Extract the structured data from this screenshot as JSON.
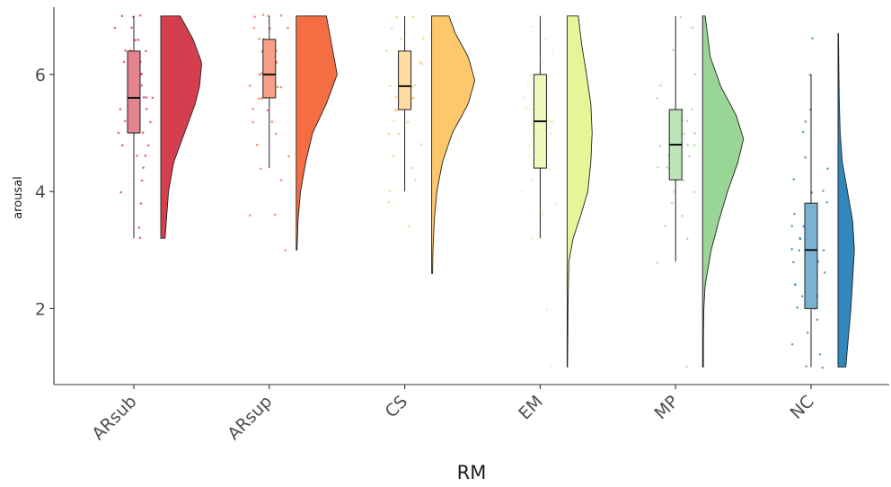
{
  "chart_data": {
    "type": "raincloud",
    "title": "",
    "xlabel": "RM",
    "ylabel": "arousal",
    "ylim": [
      0.7,
      7.15
    ],
    "y_ticks": [
      2,
      4,
      6
    ],
    "grid": false,
    "legend": "none",
    "categories": [
      "ARsub",
      "ARsup",
      "CS",
      "EM",
      "MP",
      "NC"
    ],
    "series": [
      {
        "category": "ARsub",
        "color": "#D53E4F",
        "box": {
          "min": 3.2,
          "q1": 5.0,
          "median": 5.6,
          "q3": 6.4,
          "max": 7.0
        },
        "density_range": [
          3.2,
          7.0
        ],
        "density": [
          [
            3.2,
            0.1
          ],
          [
            3.6,
            0.14
          ],
          [
            4.0,
            0.18
          ],
          [
            4.5,
            0.3
          ],
          [
            5.0,
            0.55
          ],
          [
            5.5,
            0.8
          ],
          [
            5.8,
            0.9
          ],
          [
            6.2,
            0.95
          ],
          [
            6.6,
            0.75
          ],
          [
            7.0,
            0.45
          ]
        ],
        "points": [
          3.2,
          3.4,
          3.8,
          4.0,
          4.2,
          4.4,
          4.6,
          4.6,
          4.8,
          4.8,
          5.0,
          5.0,
          5.2,
          5.2,
          5.2,
          5.4,
          5.4,
          5.4,
          5.6,
          5.6,
          5.6,
          5.6,
          5.8,
          5.8,
          5.8,
          6.0,
          6.0,
          6.0,
          6.0,
          6.2,
          6.2,
          6.2,
          6.4,
          6.4,
          6.4,
          6.6,
          6.6,
          6.8,
          6.8,
          7.0,
          7.0,
          7.0
        ]
      },
      {
        "category": "ARsup",
        "color": "#F46D43",
        "box": {
          "min": 4.4,
          "q1": 5.6,
          "median": 6.0,
          "q3": 6.6,
          "max": 7.0
        },
        "density_range": [
          3.0,
          7.0
        ],
        "density": [
          [
            3.0,
            0.02
          ],
          [
            3.5,
            0.04
          ],
          [
            4.0,
            0.1
          ],
          [
            4.5,
            0.22
          ],
          [
            5.0,
            0.38
          ],
          [
            5.5,
            0.7
          ],
          [
            6.0,
            0.95
          ],
          [
            6.4,
            0.85
          ],
          [
            6.8,
            0.75
          ],
          [
            7.0,
            0.7
          ]
        ],
        "points": [
          3.0,
          3.6,
          3.6,
          4.2,
          4.4,
          4.6,
          4.8,
          5.0,
          5.2,
          5.2,
          5.4,
          5.4,
          5.6,
          5.6,
          5.6,
          5.8,
          5.8,
          5.8,
          6.0,
          6.0,
          6.0,
          6.0,
          6.2,
          6.2,
          6.2,
          6.4,
          6.4,
          6.4,
          6.6,
          6.6,
          6.8,
          6.8,
          6.8,
          7.0,
          7.0,
          7.0,
          7.0
        ]
      },
      {
        "category": "CS",
        "color": "#FDC86B",
        "box": {
          "min": 4.0,
          "q1": 5.4,
          "median": 5.8,
          "q3": 6.4,
          "max": 7.0
        },
        "density_range": [
          2.6,
          7.0
        ],
        "density": [
          [
            2.6,
            0.02
          ],
          [
            3.0,
            0.03
          ],
          [
            3.5,
            0.06
          ],
          [
            4.0,
            0.12
          ],
          [
            4.5,
            0.25
          ],
          [
            5.0,
            0.48
          ],
          [
            5.5,
            0.85
          ],
          [
            5.9,
            1.0
          ],
          [
            6.3,
            0.85
          ],
          [
            6.7,
            0.55
          ],
          [
            7.0,
            0.4
          ]
        ],
        "points": [
          3.4,
          3.8,
          4.0,
          4.2,
          4.4,
          4.6,
          4.8,
          5.0,
          5.0,
          5.2,
          5.2,
          5.4,
          5.4,
          5.4,
          5.6,
          5.6,
          5.6,
          5.8,
          5.8,
          5.8,
          5.8,
          6.0,
          6.0,
          6.0,
          6.2,
          6.2,
          6.2,
          6.4,
          6.4,
          6.6,
          6.6,
          6.8,
          7.0,
          7.0
        ]
      },
      {
        "category": "EM",
        "color": "#E6F598",
        "box": {
          "min": 3.2,
          "q1": 4.4,
          "median": 5.2,
          "q3": 6.0,
          "max": 7.0
        },
        "density_range": [
          1.0,
          7.0
        ],
        "density": [
          [
            1.0,
            0.01
          ],
          [
            2.0,
            0.02
          ],
          [
            2.8,
            0.04
          ],
          [
            3.2,
            0.14
          ],
          [
            3.6,
            0.32
          ],
          [
            4.0,
            0.48
          ],
          [
            4.5,
            0.55
          ],
          [
            5.0,
            0.58
          ],
          [
            5.5,
            0.55
          ],
          [
            6.0,
            0.45
          ],
          [
            6.5,
            0.34
          ],
          [
            7.0,
            0.26
          ]
        ],
        "points": [
          1.0,
          2.0,
          3.2,
          3.4,
          3.6,
          3.8,
          4.0,
          4.2,
          4.4,
          4.4,
          4.6,
          4.8,
          4.8,
          5.0,
          5.0,
          5.2,
          5.2,
          5.2,
          5.4,
          5.4,
          5.6,
          5.6,
          5.8,
          5.8,
          6.0,
          6.0,
          6.2,
          6.4,
          6.6,
          6.8,
          7.0
        ]
      },
      {
        "category": "MP",
        "color": "#99D594",
        "box": {
          "min": 2.8,
          "q1": 4.2,
          "median": 4.8,
          "q3": 5.4,
          "max": 7.0
        },
        "density_range": [
          1.0,
          7.0
        ],
        "density": [
          [
            1.0,
            0.02
          ],
          [
            1.5,
            0.02
          ],
          [
            2.0,
            0.03
          ],
          [
            2.4,
            0.06
          ],
          [
            3.0,
            0.2
          ],
          [
            3.5,
            0.38
          ],
          [
            4.0,
            0.58
          ],
          [
            4.5,
            0.82
          ],
          [
            4.9,
            0.95
          ],
          [
            5.3,
            0.78
          ],
          [
            5.8,
            0.42
          ],
          [
            6.3,
            0.18
          ],
          [
            7.0,
            0.06
          ]
        ],
        "points": [
          1.0,
          2.8,
          3.2,
          3.4,
          3.6,
          3.8,
          4.0,
          4.0,
          4.2,
          4.2,
          4.4,
          4.4,
          4.6,
          4.6,
          4.8,
          4.8,
          4.8,
          5.0,
          5.0,
          5.2,
          5.2,
          5.4,
          5.4,
          5.6,
          5.8,
          6.0,
          6.4,
          6.8,
          7.0
        ]
      },
      {
        "category": "NC",
        "color": "#3288BD",
        "box": {
          "min": 1.0,
          "q1": 2.0,
          "median": 3.0,
          "q3": 3.8,
          "max": 6.0
        },
        "density_range": [
          1.0,
          6.7
        ],
        "density": [
          [
            1.0,
            0.18
          ],
          [
            1.5,
            0.24
          ],
          [
            2.0,
            0.3
          ],
          [
            2.5,
            0.34
          ],
          [
            3.0,
            0.38
          ],
          [
            3.5,
            0.34
          ],
          [
            4.0,
            0.22
          ],
          [
            4.5,
            0.1
          ],
          [
            5.0,
            0.05
          ],
          [
            5.5,
            0.03
          ],
          [
            6.0,
            0.02
          ],
          [
            6.7,
            0.01
          ]
        ],
        "points": [
          1.0,
          1.0,
          1.2,
          1.4,
          1.6,
          1.8,
          2.0,
          2.0,
          2.2,
          2.2,
          2.4,
          2.4,
          2.6,
          2.6,
          2.8,
          2.8,
          3.0,
          3.0,
          3.0,
          3.2,
          3.2,
          3.4,
          3.4,
          3.6,
          3.6,
          3.8,
          4.0,
          4.0,
          4.2,
          4.4,
          4.6,
          5.0,
          5.2,
          5.4,
          6.0,
          6.6
        ]
      }
    ]
  }
}
